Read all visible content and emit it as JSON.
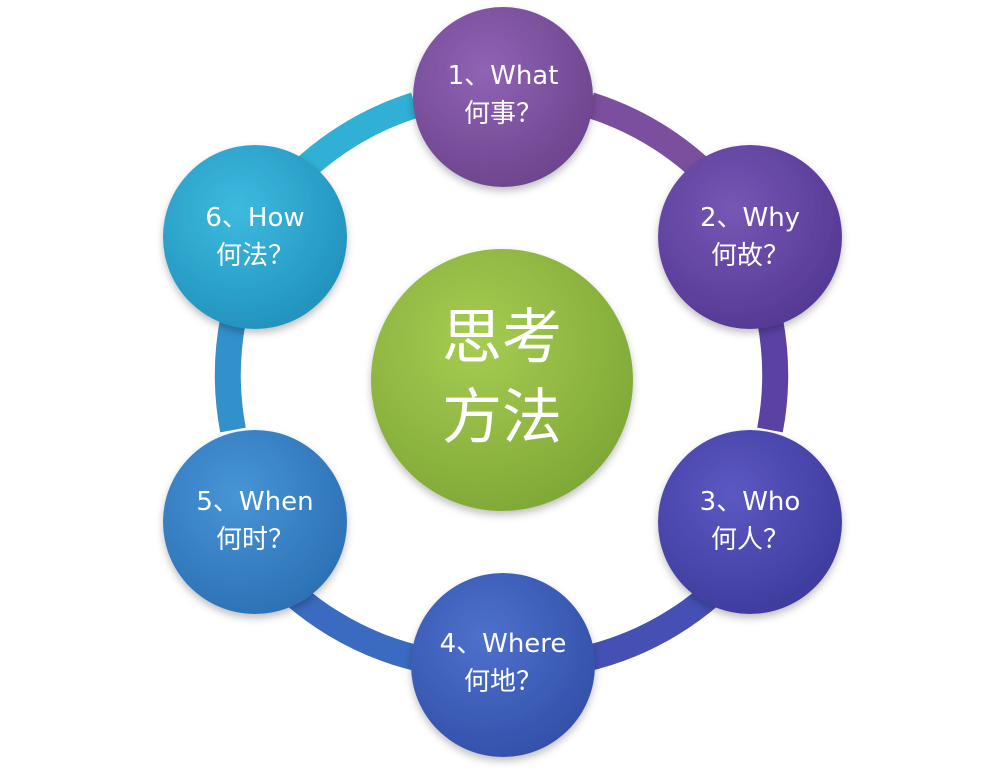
{
  "center": {
    "line1": "思考",
    "line2": "方法",
    "color": "#8DB640"
  },
  "nodes": [
    {
      "line1": "1、What",
      "line2": "何事？",
      "color": "#7B4E9E"
    },
    {
      "line1": "2、Why",
      "line2": "何故？",
      "color": "#6344A0"
    },
    {
      "line1": "3、Who",
      "line2": "何人？",
      "color": "#4B47AE"
    },
    {
      "line1": "4、Where",
      "line2": "何地？",
      "color": "#3E5DBC"
    },
    {
      "line1": "5、When",
      "line2": "何时？",
      "color": "#3680C7"
    },
    {
      "line1": "6、How",
      "line2": "何法？",
      "color": "#2AA5CF"
    }
  ]
}
